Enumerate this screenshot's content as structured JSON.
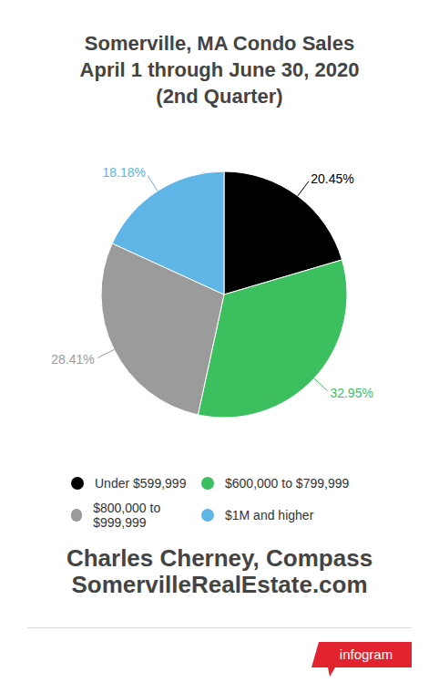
{
  "chart_data": {
    "type": "pie",
    "title": [
      "Somerville, MA Condo Sales",
      "April 1 through June 30, 2020",
      "(2nd Quarter)"
    ],
    "categories": [
      "Under $599,999",
      "$600,000 to $799,999",
      "$800,000 to $999,999",
      "$1M and higher"
    ],
    "values": [
      20.45,
      32.95,
      28.41,
      18.18
    ],
    "value_labels": [
      "20.45%",
      "32.95%",
      "28.41%",
      "18.18%"
    ],
    "colors": [
      "#000000",
      "#3cbf5f",
      "#9b9b9b",
      "#5eb5e6"
    ],
    "data_labels": true,
    "legend": "bottom",
    "footer": [
      "Charles Cherney, Compass",
      "SomervilleRealEstate.com"
    ],
    "badge": "infogram"
  }
}
